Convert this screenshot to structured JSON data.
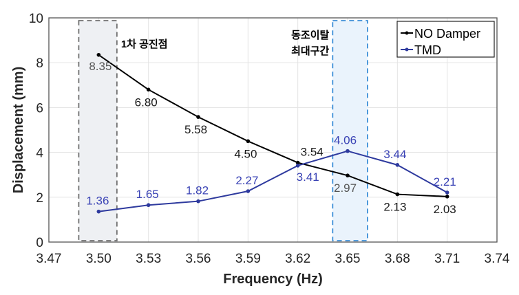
{
  "chart_data": {
    "type": "line",
    "xlabel": "Frequency (Hz)",
    "ylabel": "Displacement (mm)",
    "xlim": [
      3.47,
      3.74
    ],
    "ylim": [
      0,
      10
    ],
    "xticks": [
      "3.47",
      "3.50",
      "3.53",
      "3.56",
      "3.59",
      "3.62",
      "3.65",
      "3.68",
      "3.71",
      "3.74"
    ],
    "yticks": [
      "0",
      "2",
      "4",
      "6",
      "8",
      "10"
    ],
    "grid": true,
    "legend": "top-right",
    "x": [
      3.5,
      3.53,
      3.56,
      3.59,
      3.62,
      3.65,
      3.68,
      3.71
    ],
    "series": [
      {
        "name": "NO Damper",
        "color": "#000000",
        "values": [
          8.35,
          6.8,
          5.58,
          4.5,
          3.54,
          2.97,
          2.13,
          2.03
        ],
        "labels": [
          "8.35",
          "6.80",
          "5.58",
          "4.50",
          "3.54",
          "2.97",
          "2.13",
          "2.03"
        ]
      },
      {
        "name": "TMD",
        "color": "#2e3a9e",
        "values": [
          1.36,
          1.65,
          1.82,
          2.27,
          3.41,
          4.06,
          3.44,
          2.21
        ],
        "labels": [
          "1.36",
          "1.65",
          "1.82",
          "2.27",
          "3.41",
          "4.06",
          "3.44",
          "2.21"
        ]
      }
    ],
    "regions": [
      {
        "label": "1차 공진점",
        "x_range": [
          3.488,
          3.511
        ],
        "color": "#707070",
        "fill": "#eef0f3"
      },
      {
        "label_lines": [
          "동조이탈",
          "최대구간"
        ],
        "x_range": [
          3.641,
          3.662
        ],
        "color": "#3d8fd8",
        "fill": "#eaf3fc"
      }
    ]
  }
}
